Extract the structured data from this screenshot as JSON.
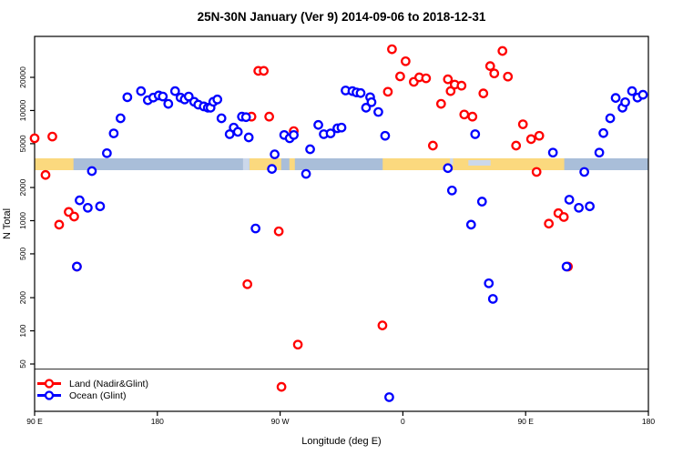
{
  "chart_data": {
    "type": "scatter",
    "title": "25N-30N January (Ver 9)   2014-09-06 to 2018-12-31",
    "xlabel": "Longitude (deg E)",
    "ylabel": "N Total",
    "x_axis": {
      "min": 90,
      "max": 540,
      "ticks": [
        90,
        180,
        270,
        360,
        450,
        540
      ],
      "tick_labels": [
        "90 E",
        "180",
        "90 W",
        "0",
        "90 E",
        "180"
      ],
      "note": "longitude wraps: 90E eastward to 180, 90W, 0, 90E, 180"
    },
    "y_axis": {
      "scale": "log",
      "ticks": [
        50,
        100,
        200,
        500,
        1000,
        2000,
        5000,
        10000,
        20000
      ],
      "tick_labels": [
        "50",
        "100",
        "200",
        "500",
        "1000",
        "2000",
        "5000",
        "10000",
        "20000"
      ]
    },
    "reference_line": {
      "value": 45,
      "color": "#3c3c3c"
    },
    "land_ocean_strip": {
      "description": "horizontal map strip at N~3000-3900 showing land(orange)/ocean(blue) along 25N-30N",
      "ocean_color": "#a9bed9",
      "land_color": "#fbd97e",
      "light_color": "#ccd8ea",
      "ocean_base": [
        90,
        540
      ],
      "land_segments": [
        [
          90,
          118.5
        ],
        [
          247.5,
          270.8
        ],
        [
          276.8,
          280.8
        ],
        [
          345.2,
          478.3
        ]
      ],
      "light_patches": [
        [
          242.8,
          247.4
        ],
        [
          394.5,
          396.8
        ],
        [
          408.0,
          424.3
        ]
      ]
    },
    "legend": {
      "position": "bottom-left",
      "entries": [
        {
          "label": "Land (Nadir&Glint)",
          "color": "#ff0000"
        },
        {
          "label": "Ocean (Glint)",
          "color": "#0000ff"
        }
      ]
    },
    "series": [
      {
        "name": "Land (Nadir&Glint)",
        "color": "#ff0000",
        "points": [
          [
            90,
            5600
          ],
          [
            103,
            5800
          ],
          [
            98,
            2600
          ],
          [
            115,
            1200
          ],
          [
            119,
            1090
          ],
          [
            108,
            920
          ],
          [
            121,
            383
          ],
          [
            249,
            8800
          ],
          [
            262,
            8800
          ],
          [
            280,
            6500
          ],
          [
            254,
            22900
          ],
          [
            258,
            22900
          ],
          [
            269,
            800
          ],
          [
            246,
            265
          ],
          [
            283,
            75
          ],
          [
            271,
            31
          ],
          [
            345,
            112
          ],
          [
            349,
            14800
          ],
          [
            352,
            36000
          ],
          [
            362,
            28000
          ],
          [
            358,
            20400
          ],
          [
            368,
            18200
          ],
          [
            372,
            20000
          ],
          [
            377,
            19600
          ],
          [
            382,
            4800
          ],
          [
            388,
            11500
          ],
          [
            393,
            19200
          ],
          [
            395,
            15000
          ],
          [
            398,
            17200
          ],
          [
            403,
            16800
          ],
          [
            405,
            9200
          ],
          [
            411,
            8800
          ],
          [
            419,
            14300
          ],
          [
            424,
            25300
          ],
          [
            427,
            21700
          ],
          [
            433,
            34700
          ],
          [
            437,
            20300
          ],
          [
            443,
            4800
          ],
          [
            448,
            7500
          ],
          [
            454,
            5500
          ],
          [
            460,
            5900
          ],
          [
            458,
            2770
          ],
          [
            467,
            940
          ],
          [
            474,
            1170
          ],
          [
            478,
            1080
          ],
          [
            481,
            383
          ]
        ]
      },
      {
        "name": "Ocean (Glint)",
        "color": "#0000ff",
        "points": [
          [
            121,
            383
          ],
          [
            123,
            1530
          ],
          [
            129,
            1310
          ],
          [
            138,
            1350
          ],
          [
            132,
            2820
          ],
          [
            143,
            4100
          ],
          [
            148,
            6200
          ],
          [
            153,
            8500
          ],
          [
            158,
            13200
          ],
          [
            168,
            15000
          ],
          [
            173,
            12400
          ],
          [
            177,
            13100
          ],
          [
            181,
            13700
          ],
          [
            184,
            13400
          ],
          [
            188,
            11500
          ],
          [
            193,
            15000
          ],
          [
            197,
            13100
          ],
          [
            200,
            12600
          ],
          [
            203,
            13400
          ],
          [
            207,
            12000
          ],
          [
            210,
            11300
          ],
          [
            214,
            10900
          ],
          [
            217,
            10600
          ],
          [
            219,
            10600
          ],
          [
            221,
            12000
          ],
          [
            224,
            12600
          ],
          [
            227,
            8500
          ],
          [
            233,
            6100
          ],
          [
            236,
            7000
          ],
          [
            239,
            6400
          ],
          [
            242,
            8800
          ],
          [
            245,
            8700
          ],
          [
            247,
            5700
          ],
          [
            252,
            850
          ],
          [
            264,
            2950
          ],
          [
            266,
            4000
          ],
          [
            273,
            6000
          ],
          [
            277,
            5600
          ],
          [
            280,
            6000
          ],
          [
            289,
            2660
          ],
          [
            292,
            4450
          ],
          [
            298,
            7400
          ],
          [
            302,
            6100
          ],
          [
            307,
            6200
          ],
          [
            312,
            6900
          ],
          [
            315,
            7000
          ],
          [
            318,
            15200
          ],
          [
            323,
            15000
          ],
          [
            326,
            14600
          ],
          [
            329,
            14400
          ],
          [
            333,
            10600
          ],
          [
            336,
            13200
          ],
          [
            337,
            11900
          ],
          [
            342,
            9700
          ],
          [
            347,
            5900
          ],
          [
            350,
            25
          ],
          [
            393,
            3000
          ],
          [
            396,
            1880
          ],
          [
            410,
            920
          ],
          [
            413,
            6100
          ],
          [
            418,
            1490
          ],
          [
            423,
            270
          ],
          [
            426,
            195
          ],
          [
            470,
            4150
          ],
          [
            480,
            383
          ],
          [
            482,
            1550
          ],
          [
            489,
            1310
          ],
          [
            493,
            2770
          ],
          [
            497,
            1350
          ],
          [
            504,
            4150
          ],
          [
            507,
            6240
          ],
          [
            512,
            8500
          ],
          [
            516,
            13000
          ],
          [
            521,
            10600
          ],
          [
            523,
            11900
          ],
          [
            528,
            15000
          ],
          [
            532,
            13100
          ],
          [
            536,
            13900
          ]
        ]
      }
    ]
  }
}
